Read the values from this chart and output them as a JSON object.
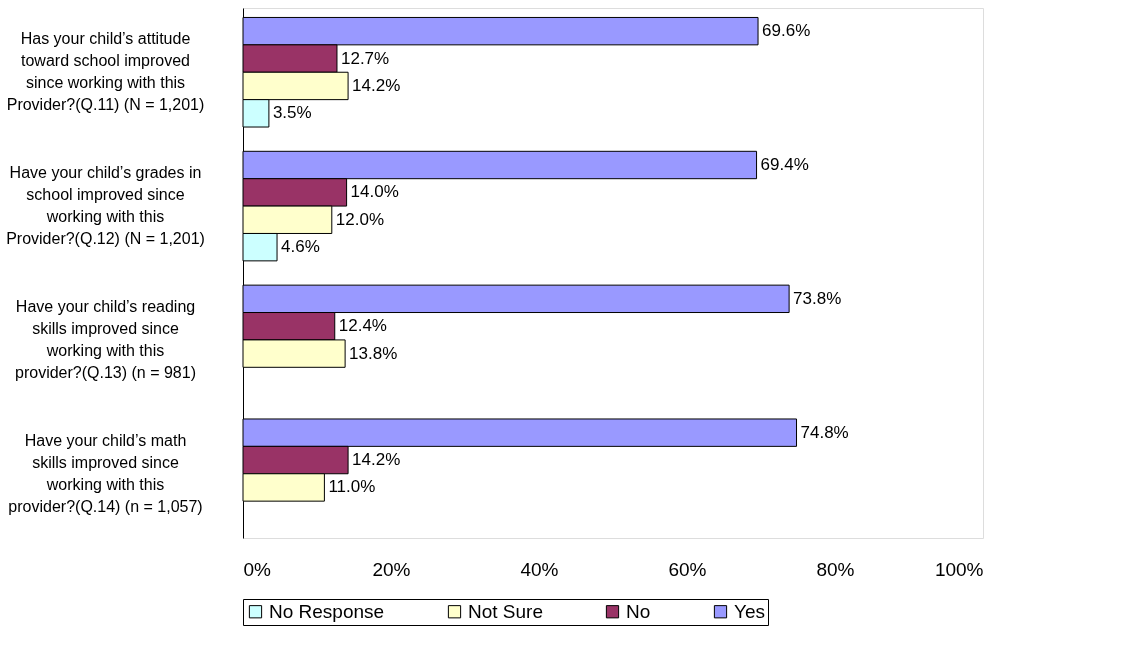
{
  "chart_data": {
    "type": "bar",
    "orientation": "horizontal",
    "categories": [
      "Has your child’s attitude toward school improved since working with this Provider?(Q.11) (N = 1,201)",
      "Have your child’s grades in school improved since working with this Provider?(Q.12) (N = 1,201)",
      "Have your child’s reading skills improved since working with this provider?(Q.13)  (n = 981)",
      "Have your child’s math skills improved since working with this provider?(Q.14) (n = 1,057)"
    ],
    "series": [
      {
        "name": "Yes",
        "color": "#9999ff",
        "values": [
          69.6,
          69.4,
          73.8,
          74.8
        ],
        "value_labels": [
          "69.6%",
          "69.4%",
          "73.8%",
          "74.8%"
        ]
      },
      {
        "name": "No",
        "color": "#993366",
        "values": [
          12.7,
          14.0,
          12.4,
          14.2
        ],
        "value_labels": [
          "12.7%",
          "14.0%",
          "12.4%",
          "14.2%"
        ]
      },
      {
        "name": "Not Sure",
        "color": "#ffffcc",
        "values": [
          14.2,
          12.0,
          13.8,
          11.0
        ],
        "value_labels": [
          "14.2%",
          "12.0%",
          "13.8%",
          "11.0%"
        ]
      },
      {
        "name": "No Response",
        "color": "#ccffff",
        "values": [
          3.5,
          4.6,
          null,
          null
        ],
        "value_labels": [
          "3.5%",
          "4.6%",
          null,
          null
        ]
      }
    ],
    "xlim": [
      0,
      100
    ],
    "xticks": [
      {
        "value": 0,
        "label": "0%"
      },
      {
        "value": 20,
        "label": "20%"
      },
      {
        "value": 40,
        "label": "40%"
      },
      {
        "value": 60,
        "label": "60%"
      },
      {
        "value": 80,
        "label": "80%"
      },
      {
        "value": 100,
        "label": "100%"
      }
    ],
    "grid": false,
    "legend": "bottom"
  }
}
